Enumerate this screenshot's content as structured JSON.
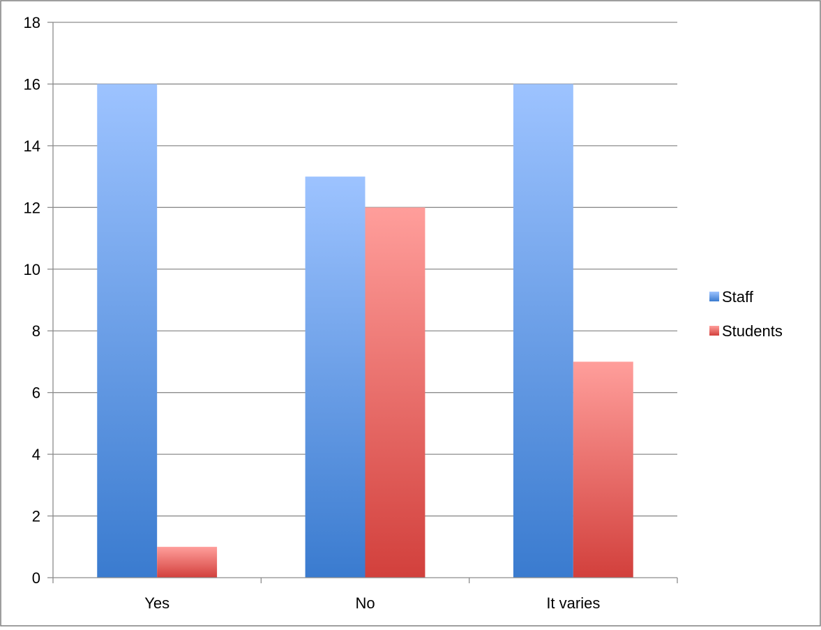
{
  "chart_data": {
    "type": "bar",
    "categories": [
      "Yes",
      "No",
      "It varies"
    ],
    "series": [
      {
        "name": "Staff",
        "values": [
          16,
          13,
          16
        ],
        "color_top": "#9dc3ff",
        "color_bottom": "#3a7bcf"
      },
      {
        "name": "Students",
        "values": [
          1,
          12,
          7
        ],
        "color_top": "#ff9e9b",
        "color_bottom": "#d2403c"
      }
    ],
    "ylim": [
      0,
      18
    ],
    "yticks": [
      0,
      2,
      4,
      6,
      8,
      10,
      12,
      14,
      16,
      18
    ],
    "grid": true,
    "legend_position": "right"
  }
}
